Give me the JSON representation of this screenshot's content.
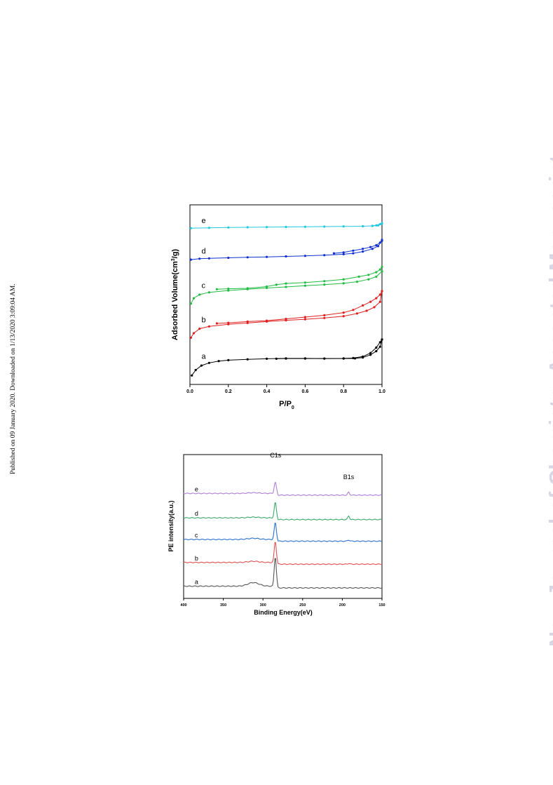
{
  "page": {
    "side_note": "Published on 09 January 2020. Downloaded on 1/13/2020 3:09:04 AM.",
    "watermark": "New Journal of Chemistry Accepted Manuscript"
  },
  "chart_data": [
    {
      "type": "line",
      "title": "",
      "xlabel": "P/P",
      "xlabel_sub": "0",
      "ylabel_main": "Adsorbed Volume(cm",
      "ylabel_sup": "3",
      "ylabel_end": "/g)",
      "xlim": [
        0,
        1.0
      ],
      "ylim": [
        0,
        100
      ],
      "xticks": [
        "0.0",
        "0.2",
        "0.4",
        "0.6",
        "0.8",
        "1.0"
      ],
      "yticks": [],
      "note": "y in relative plot units (no y tick labels printed)",
      "series": [
        {
          "name": "a",
          "color": "#000000",
          "adsorption": [
            [
              0.01,
              5
            ],
            [
              0.03,
              8
            ],
            [
              0.06,
              10.5
            ],
            [
              0.1,
              12
            ],
            [
              0.15,
              13
            ],
            [
              0.2,
              13.5
            ],
            [
              0.3,
              14
            ],
            [
              0.4,
              14.3
            ],
            [
              0.5,
              14.5
            ],
            [
              0.6,
              14.5
            ],
            [
              0.7,
              14.4
            ],
            [
              0.8,
              14.4
            ],
            [
              0.86,
              14.5
            ],
            [
              0.9,
              15
            ],
            [
              0.94,
              16.5
            ],
            [
              0.97,
              18.5
            ],
            [
              0.99,
              21
            ],
            [
              1.0,
              25
            ]
          ],
          "desorption": [
            [
              1.0,
              25
            ],
            [
              0.99,
              23.5
            ],
            [
              0.97,
              20.5
            ],
            [
              0.94,
              17.5
            ],
            [
              0.9,
              15.5
            ],
            [
              0.85,
              14.7
            ],
            [
              0.8,
              14.5
            ],
            [
              0.7,
              14.4
            ],
            [
              0.6,
              14.4
            ],
            [
              0.5,
              14.4
            ],
            [
              0.45,
              14.3
            ]
          ]
        },
        {
          "name": "b",
          "color": "#e02020",
          "adsorption": [
            [
              0.005,
              26
            ],
            [
              0.02,
              28.5
            ],
            [
              0.05,
              31
            ],
            [
              0.1,
              32.3
            ],
            [
              0.2,
              33.5
            ],
            [
              0.3,
              34.2
            ],
            [
              0.4,
              35
            ],
            [
              0.5,
              35.7
            ],
            [
              0.6,
              36.3
            ],
            [
              0.7,
              37
            ],
            [
              0.8,
              38
            ],
            [
              0.87,
              39.5
            ],
            [
              0.92,
              41
            ],
            [
              0.96,
              43
            ],
            [
              0.99,
              46
            ],
            [
              1.0,
              52
            ]
          ],
          "desorption": [
            [
              1.0,
              52
            ],
            [
              0.99,
              50
            ],
            [
              0.97,
              48
            ],
            [
              0.94,
              46
            ],
            [
              0.9,
              44
            ],
            [
              0.85,
              41.5
            ],
            [
              0.8,
              40
            ],
            [
              0.7,
              38.5
            ],
            [
              0.6,
              37.5
            ],
            [
              0.5,
              36.5
            ],
            [
              0.4,
              35.5
            ],
            [
              0.3,
              35
            ],
            [
              0.2,
              34.3
            ],
            [
              0.14,
              34
            ]
          ]
        },
        {
          "name": "c",
          "color": "#22bb44",
          "adsorption": [
            [
              0.005,
              45
            ],
            [
              0.02,
              48
            ],
            [
              0.05,
              50
            ],
            [
              0.1,
              51.3
            ],
            [
              0.2,
              52.3
            ],
            [
              0.3,
              53
            ],
            [
              0.4,
              53.7
            ],
            [
              0.5,
              54.3
            ],
            [
              0.6,
              55
            ],
            [
              0.7,
              55.6
            ],
            [
              0.8,
              56.3
            ],
            [
              0.87,
              57.2
            ],
            [
              0.93,
              58.5
            ],
            [
              0.97,
              60
            ],
            [
              1.0,
              63
            ]
          ],
          "desorption": [
            [
              1.0,
              65.5
            ],
            [
              0.99,
              64
            ],
            [
              0.97,
              62.5
            ],
            [
              0.93,
              61
            ],
            [
              0.88,
              60
            ],
            [
              0.8,
              58.5
            ],
            [
              0.7,
              57.5
            ],
            [
              0.6,
              56.7
            ],
            [
              0.5,
              56.2
            ],
            [
              0.45,
              55.5
            ],
            [
              0.4,
              54.5
            ],
            [
              0.3,
              53.5
            ],
            [
              0.2,
              53.3
            ],
            [
              0.14,
              53
            ]
          ]
        },
        {
          "name": "d",
          "color": "#1030d0",
          "adsorption": [
            [
              0.005,
              69.5
            ],
            [
              0.05,
              70
            ],
            [
              0.1,
              70.2
            ],
            [
              0.2,
              70.5
            ],
            [
              0.3,
              70.8
            ],
            [
              0.4,
              71
            ],
            [
              0.5,
              71.3
            ],
            [
              0.6,
              71.6
            ],
            [
              0.7,
              72
            ],
            [
              0.8,
              72.5
            ],
            [
              0.85,
              73
            ],
            [
              0.9,
              74
            ],
            [
              0.95,
              75.5
            ],
            [
              0.98,
              77
            ],
            [
              1.0,
              80
            ]
          ],
          "desorption": [
            [
              1.0,
              80.5
            ],
            [
              0.99,
              79
            ],
            [
              0.97,
              77.5
            ],
            [
              0.94,
              76.5
            ],
            [
              0.9,
              75.5
            ],
            [
              0.85,
              74.5
            ],
            [
              0.8,
              73.5
            ],
            [
              0.75,
              73
            ]
          ]
        },
        {
          "name": "e",
          "color": "#22c8e0",
          "adsorption": [
            [
              0.005,
              87
            ],
            [
              0.1,
              87.2
            ],
            [
              0.2,
              87.4
            ],
            [
              0.3,
              87.5
            ],
            [
              0.4,
              87.6
            ],
            [
              0.5,
              87.7
            ],
            [
              0.6,
              87.8
            ],
            [
              0.7,
              87.9
            ],
            [
              0.8,
              88
            ],
            [
              0.9,
              88.1
            ],
            [
              0.95,
              88.3
            ],
            [
              0.98,
              88.6
            ],
            [
              1.0,
              89.5
            ]
          ],
          "desorption": [
            [
              1.0,
              89.8
            ],
            [
              0.99,
              89.2
            ],
            [
              0.97,
              88.6
            ],
            [
              0.95,
              88.3
            ]
          ]
        }
      ]
    },
    {
      "type": "line",
      "title": "",
      "xlabel": "Binding Energy(eV)",
      "ylabel": "PE intensity(a.u.)",
      "xlim": [
        400,
        150
      ],
      "ylim": [
        0,
        100
      ],
      "xticks": [
        "400",
        "350",
        "300",
        "250",
        "200",
        "150"
      ],
      "yticks": [],
      "note": "y in relative plot units (no y tick labels printed)",
      "peak_labels": [
        {
          "text": "C1s",
          "x": 284,
          "y": 98
        },
        {
          "text": "B1s",
          "x": 192,
          "y": 83
        }
      ],
      "series": [
        {
          "name": "a",
          "color": "#555555",
          "baseline": 8.5,
          "bump": 2.5,
          "c1s": 21,
          "b1s": 0
        },
        {
          "name": "b",
          "color": "#e05050",
          "baseline": 25,
          "bump": 0.8,
          "c1s": 15,
          "b1s": 0.5
        },
        {
          "name": "c",
          "color": "#2a6fd0",
          "baseline": 41,
          "bump": 0.8,
          "c1s": 12,
          "b1s": 0.8
        },
        {
          "name": "d",
          "color": "#3aa86a",
          "baseline": 56,
          "bump": 0.5,
          "c1s": 11,
          "b1s": 2.5
        },
        {
          "name": "e",
          "color": "#b07ed8",
          "baseline": 73,
          "bump": 0.5,
          "c1s": 8,
          "b1s": 2
        }
      ]
    }
  ]
}
